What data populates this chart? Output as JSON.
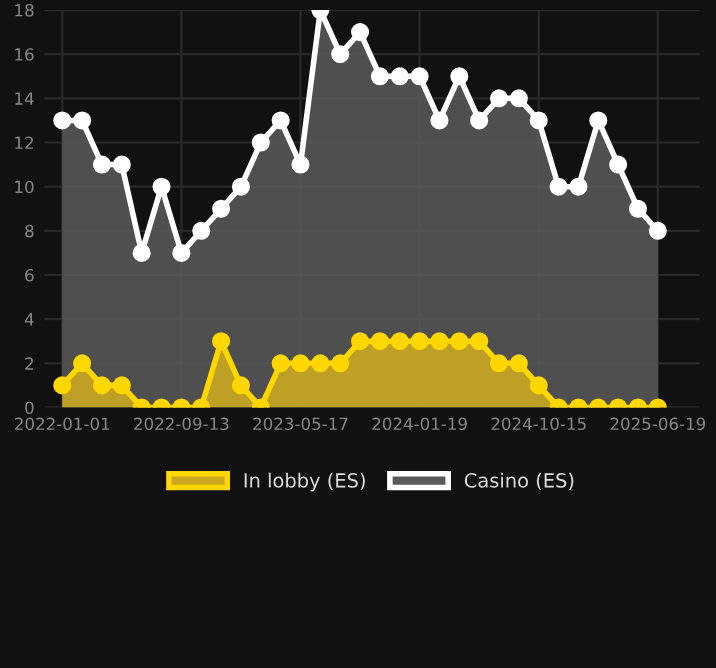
{
  "chart_data": {
    "type": "area",
    "categories": [
      "2022-01-01",
      null,
      null,
      null,
      null,
      null,
      "2022-09-13",
      null,
      null,
      null,
      null,
      null,
      "2023-05-17",
      null,
      null,
      null,
      null,
      null,
      "2024-01-19",
      null,
      null,
      null,
      null,
      null,
      "2024-10-15",
      null,
      null,
      null,
      null,
      null,
      "2025-06-19"
    ],
    "series": [
      {
        "name": "In lobby (ES)",
        "color": "#ffd700",
        "values": [
          1,
          2,
          1,
          1,
          0,
          0,
          0,
          0,
          3,
          1,
          0,
          2,
          2,
          2,
          2,
          3,
          3,
          3,
          3,
          3,
          3,
          3,
          2,
          2,
          1,
          0,
          0,
          0,
          0,
          0,
          0
        ]
      },
      {
        "name": "Casino (ES)",
        "color": "#ffffff",
        "values": [
          13,
          13,
          11,
          11,
          7,
          10,
          7,
          8,
          9,
          10,
          12,
          13,
          11,
          18,
          16,
          17,
          15,
          15,
          15,
          13,
          15,
          13,
          14,
          14,
          13,
          10,
          10,
          13,
          11,
          9,
          8
        ]
      }
    ],
    "ylim": [
      0,
      18
    ],
    "yticks": [
      0,
      2,
      4,
      6,
      8,
      10,
      12,
      14,
      16,
      18
    ],
    "grid": true,
    "legend": "bottom",
    "marker": "circle"
  }
}
